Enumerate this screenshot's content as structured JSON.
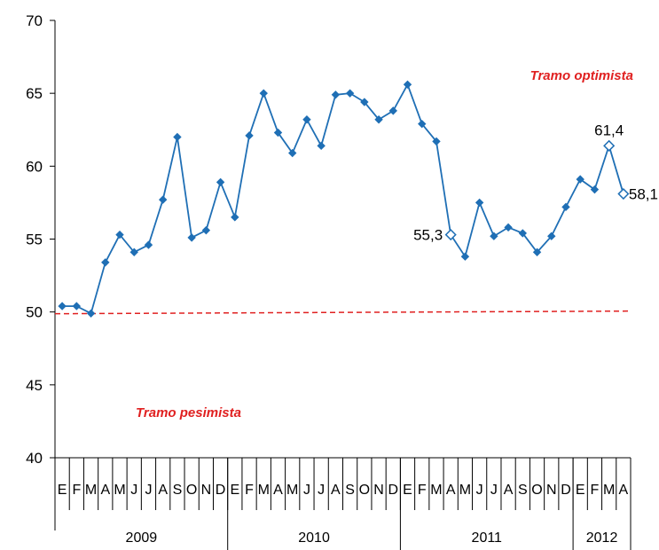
{
  "chart_data": {
    "type": "line",
    "ylim": [
      40,
      70
    ],
    "yticks": [
      40,
      45,
      50,
      55,
      60,
      65,
      70
    ],
    "ytick_labels": [
      "40",
      "45",
      "50",
      "55",
      "60",
      "65",
      "70"
    ],
    "months": [
      "E",
      "F",
      "M",
      "A",
      "M",
      "J",
      "J",
      "A",
      "S",
      "O",
      "N",
      "D",
      "E",
      "F",
      "M",
      "A",
      "M",
      "J",
      "J",
      "A",
      "S",
      "O",
      "N",
      "D",
      "E",
      "F",
      "M",
      "A",
      "M",
      "J",
      "J",
      "A",
      "S",
      "O",
      "N",
      "D",
      "E",
      "F",
      "M",
      "A"
    ],
    "years": [
      {
        "label": "2009",
        "months": 12
      },
      {
        "label": "2010",
        "months": 12
      },
      {
        "label": "2011",
        "months": 12
      },
      {
        "label": "2012",
        "months": 4
      }
    ],
    "series": [
      {
        "color": "#1f6fb5",
        "values": [
          50.4,
          50.4,
          49.9,
          53.4,
          55.3,
          54.1,
          54.6,
          57.7,
          62.0,
          55.1,
          55.6,
          58.9,
          56.5,
          62.1,
          65.0,
          62.3,
          60.9,
          63.2,
          61.4,
          64.9,
          65.0,
          64.4,
          63.2,
          63.8,
          65.6,
          62.9,
          61.7,
          55.3,
          53.8,
          57.5,
          55.2,
          55.8,
          55.4,
          54.1,
          55.2,
          57.2,
          59.1,
          58.4,
          61.4,
          58.1
        ],
        "hollow_indices": [
          27,
          38,
          39
        ]
      }
    ],
    "reference_line": {
      "y": 50,
      "color": "#e02020"
    },
    "annotations": [
      {
        "text": "Tramo optimista",
        "color": "#e02020"
      },
      {
        "text": "Tramo pesimista",
        "color": "#e02020"
      }
    ],
    "data_labels": [
      {
        "index": 27,
        "text": "55,3"
      },
      {
        "index": 38,
        "text": "61,4"
      },
      {
        "index": 39,
        "text": "58,1"
      }
    ]
  }
}
